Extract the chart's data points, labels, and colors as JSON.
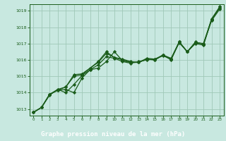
{
  "xlabel": "Graphe pression niveau de la mer (hPa)",
  "background_color": "#c8e8e0",
  "plot_bg_color": "#c8e8e0",
  "grid_color": "#a0c8b8",
  "line_color": "#1a5c1a",
  "marker": "D",
  "markersize": 2.2,
  "linewidth": 0.9,
  "xlim": [
    -0.5,
    23.5
  ],
  "ylim": [
    1012.6,
    1019.4
  ],
  "yticks": [
    1013,
    1014,
    1015,
    1016,
    1017,
    1018,
    1019
  ],
  "xticks": [
    0,
    1,
    2,
    3,
    4,
    5,
    6,
    7,
    8,
    9,
    10,
    11,
    12,
    13,
    14,
    15,
    16,
    17,
    18,
    19,
    20,
    21,
    22,
    23
  ],
  "xlabel_bg": "#1a5c1a",
  "xlabel_color": "#ffffff",
  "tick_color": "#1a5c1a",
  "spine_color": "#1a5c1a",
  "series": [
    [
      1012.8,
      1013.1,
      1013.9,
      1014.15,
      1014.2,
      1014.0,
      1014.9,
      1015.4,
      1015.5,
      1015.9,
      1016.5,
      1015.95,
      1015.85,
      1015.85,
      1016.05,
      1016.0,
      1016.3,
      1016.0,
      1017.1,
      1016.5,
      1017.0,
      1016.9,
      1018.45,
      1019.2
    ],
    [
      1012.8,
      1013.1,
      1013.9,
      1014.2,
      1014.0,
      1014.5,
      1015.05,
      1015.4,
      1015.7,
      1016.2,
      1016.1,
      1015.9,
      1015.8,
      1015.9,
      1016.0,
      1016.05,
      1016.25,
      1016.05,
      1017.05,
      1016.5,
      1017.05,
      1017.0,
      1018.4,
      1019.1
    ],
    [
      1012.8,
      1013.1,
      1013.9,
      1014.15,
      1014.35,
      1015.0,
      1015.1,
      1015.5,
      1015.85,
      1016.4,
      1016.15,
      1016.0,
      1015.85,
      1015.85,
      1016.1,
      1016.05,
      1016.3,
      1016.1,
      1017.1,
      1016.5,
      1017.1,
      1016.95,
      1018.5,
      1019.2
    ],
    [
      1012.8,
      1013.1,
      1013.85,
      1014.2,
      1014.35,
      1015.1,
      1015.15,
      1015.5,
      1015.9,
      1016.5,
      1016.15,
      1016.05,
      1015.9,
      1015.85,
      1016.05,
      1016.0,
      1016.3,
      1016.05,
      1017.1,
      1016.5,
      1017.05,
      1017.0,
      1018.5,
      1019.25
    ]
  ]
}
